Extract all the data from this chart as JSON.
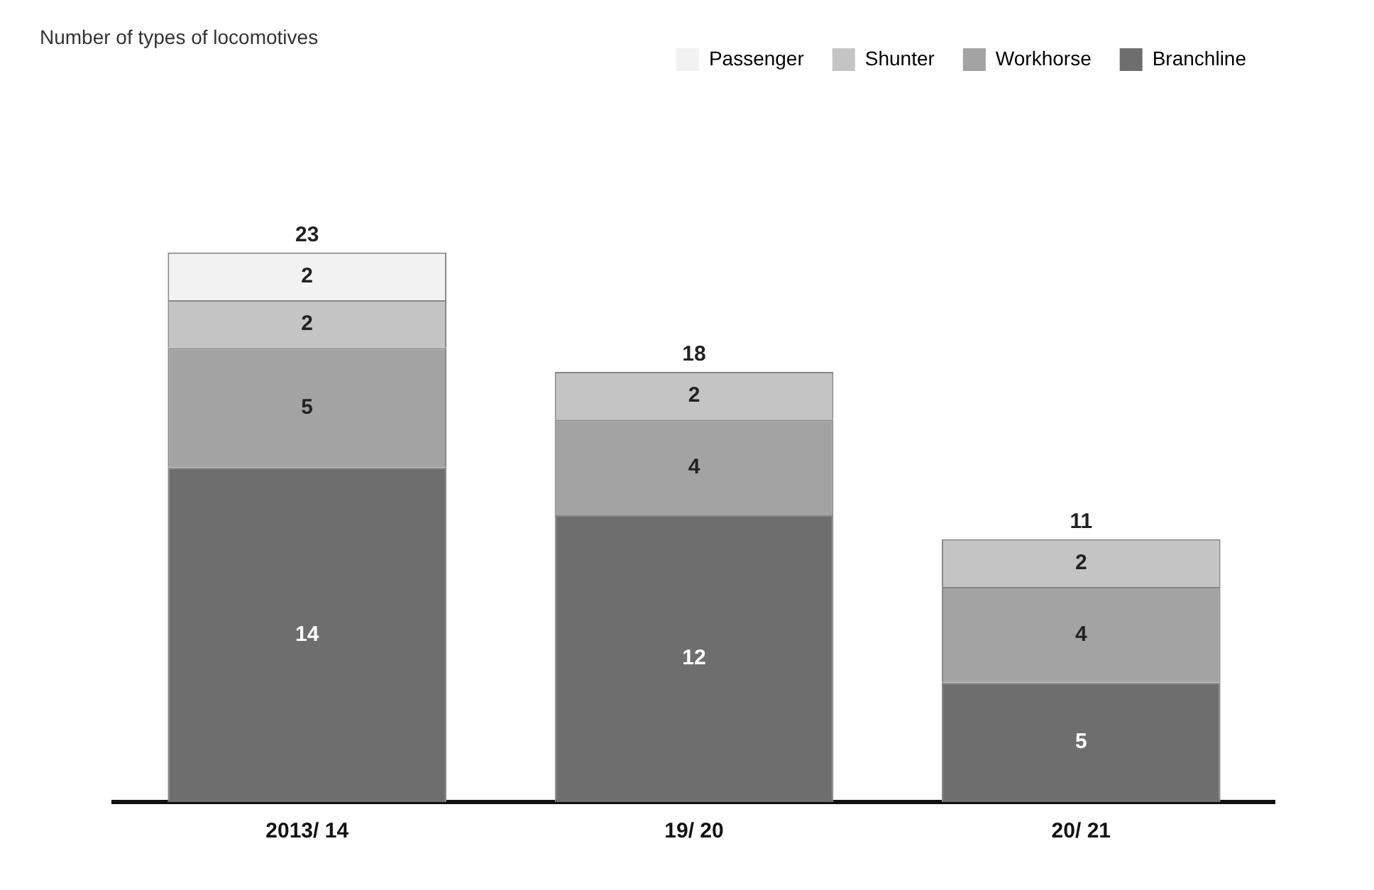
{
  "chart_data": {
    "type": "bar",
    "title": "Number of types of locomotives",
    "categories": [
      "2013/ 14",
      "19/ 20",
      "20/ 21"
    ],
    "series": [
      {
        "name": "Branchline",
        "color": "#6e6e6e",
        "values": [
          14,
          12,
          5
        ]
      },
      {
        "name": "Workhorse",
        "color": "#a3a3a3",
        "values": [
          5,
          4,
          4
        ]
      },
      {
        "name": "Shunter",
        "color": "#c4c4c4",
        "values": [
          2,
          2,
          2
        ]
      },
      {
        "name": "Passenger",
        "color": "#f2f2f2",
        "values": [
          2,
          null,
          null
        ]
      }
    ],
    "stacked": true,
    "data_labels": true,
    "totals": [
      "23",
      "18",
      "11"
    ],
    "legend": "top right",
    "grid": false
  }
}
